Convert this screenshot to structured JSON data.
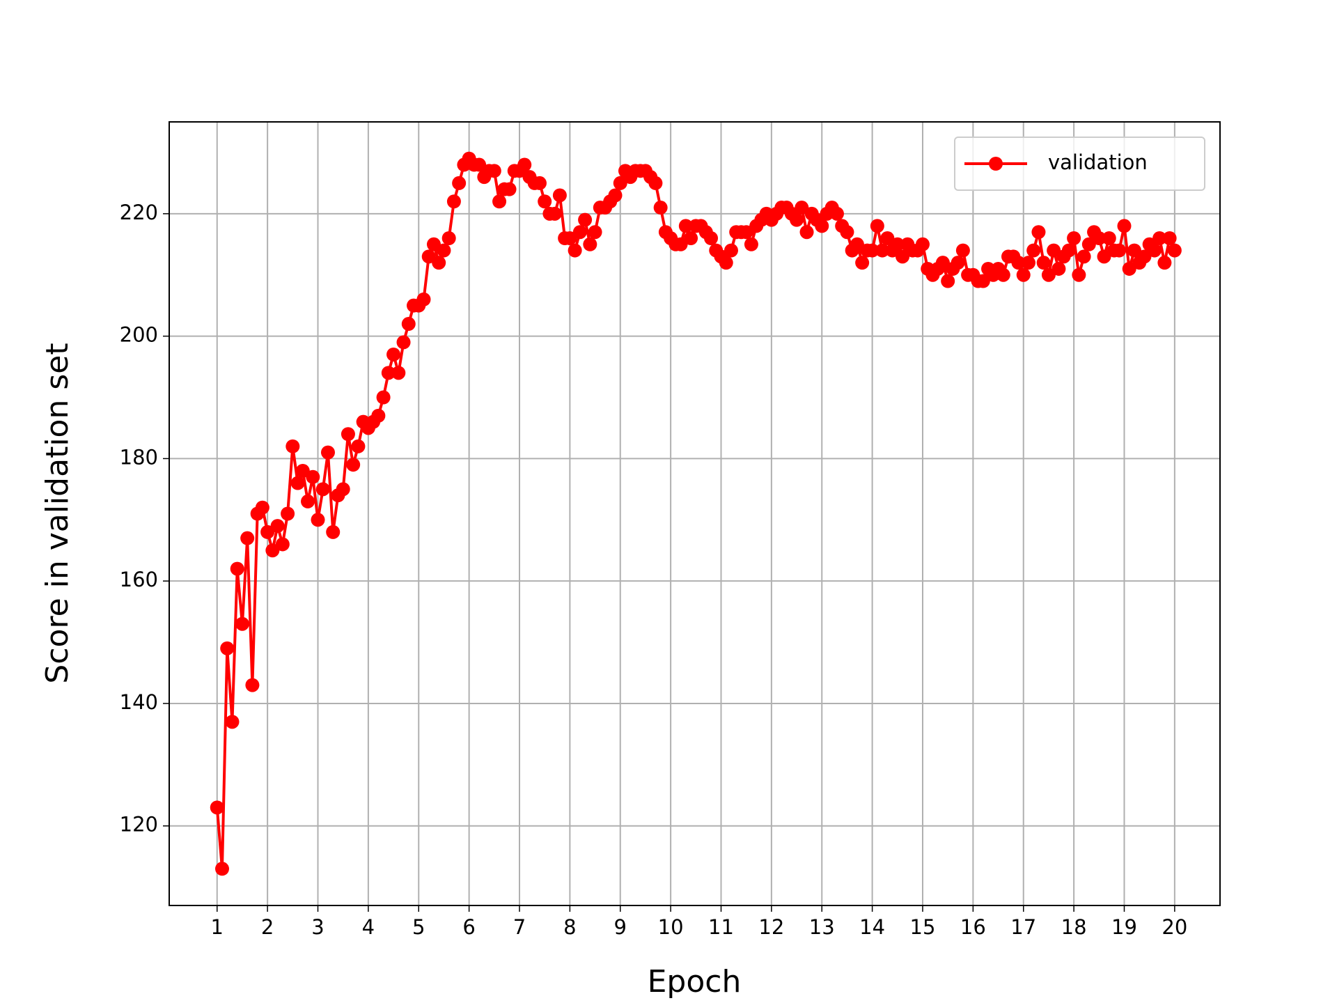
{
  "chart_data": {
    "type": "line",
    "xlabel": "Epoch",
    "ylabel": "Score in validation set",
    "x": [
      1.0,
      1.1,
      1.2,
      1.3,
      1.4,
      1.5,
      1.6,
      1.7,
      1.8,
      1.9,
      2.0,
      2.1,
      2.2,
      2.3,
      2.4,
      2.5,
      2.6,
      2.7,
      2.8,
      2.9,
      3.0,
      3.1,
      3.2,
      3.3,
      3.4,
      3.5,
      3.6,
      3.7,
      3.8,
      3.9,
      4.0,
      4.1,
      4.2,
      4.3,
      4.4,
      4.5,
      4.6,
      4.7,
      4.8,
      4.9,
      5.0,
      5.1,
      5.2,
      5.3,
      5.4,
      5.5,
      5.6,
      5.7,
      5.8,
      5.9,
      6.0,
      6.1,
      6.2,
      6.3,
      6.4,
      6.5,
      6.6,
      6.7,
      6.8,
      6.9,
      7.0,
      7.1,
      7.2,
      7.3,
      7.4,
      7.5,
      7.6,
      7.7,
      7.8,
      7.9,
      8.0,
      8.1,
      8.2,
      8.3,
      8.4,
      8.5,
      8.6,
      8.7,
      8.8,
      8.9,
      9.0,
      9.1,
      9.2,
      9.3,
      9.4,
      9.5,
      9.6,
      9.7,
      9.8,
      9.9,
      10.0,
      10.1,
      10.2,
      10.3,
      10.4,
      10.5,
      10.6,
      10.7,
      10.8,
      10.9,
      11.0,
      11.1,
      11.2,
      11.3,
      11.4,
      11.5,
      11.6,
      11.7,
      11.8,
      11.9,
      12.0,
      12.1,
      12.2,
      12.3,
      12.4,
      12.5,
      12.6,
      12.7,
      12.8,
      12.9,
      13.0,
      13.1,
      13.2,
      13.3,
      13.4,
      13.5,
      13.6,
      13.7,
      13.8,
      13.9,
      14.0,
      14.1,
      14.2,
      14.3,
      14.4,
      14.5,
      14.6,
      14.7,
      14.8,
      14.9,
      15.0,
      15.1,
      15.2,
      15.3,
      15.4,
      15.5,
      15.6,
      15.7,
      15.8,
      15.9,
      16.0,
      16.1,
      16.2,
      16.3,
      16.4,
      16.5,
      16.6,
      16.7,
      16.8,
      16.9,
      17.0,
      17.1,
      17.2,
      17.3,
      17.4,
      17.5,
      17.6,
      17.7,
      17.8,
      17.9,
      18.0,
      18.1,
      18.2,
      18.3,
      18.4,
      18.5,
      18.6,
      18.7,
      18.8,
      18.9,
      19.0,
      19.1,
      19.2,
      19.3,
      19.4,
      19.5,
      19.6,
      19.7,
      19.8,
      19.9,
      20.0
    ],
    "series": [
      {
        "name": "validation",
        "color": "#ff0000",
        "values": [
          123,
          113,
          149,
          137,
          162,
          153,
          167,
          143,
          171,
          172,
          168,
          165,
          169,
          166,
          171,
          182,
          176,
          178,
          173,
          177,
          170,
          175,
          181,
          168,
          174,
          175,
          184,
          179,
          182,
          186,
          185,
          186,
          187,
          190,
          194,
          197,
          194,
          199,
          202,
          205,
          205,
          206,
          213,
          215,
          212,
          214,
          216,
          222,
          225,
          228,
          229,
          228,
          228,
          226,
          227,
          227,
          222,
          224,
          224,
          227,
          227,
          228,
          226,
          225,
          225,
          222,
          220,
          220,
          223,
          216,
          216,
          214,
          217,
          219,
          215,
          217,
          221,
          221,
          222,
          223,
          225,
          227,
          226,
          227,
          227,
          227,
          226,
          225,
          221,
          217,
          216,
          215,
          215,
          218,
          216,
          218,
          218,
          217,
          216,
          214,
          213,
          212,
          214,
          217,
          217,
          217,
          215,
          218,
          219,
          220,
          219,
          220,
          221,
          221,
          220,
          219,
          221,
          217,
          220,
          219,
          218,
          220,
          221,
          220,
          218,
          217,
          214,
          215,
          212,
          214,
          214,
          218,
          214,
          216,
          214,
          215,
          213,
          215,
          214,
          214,
          215,
          211,
          210,
          211,
          212,
          209,
          211,
          212,
          214,
          210,
          210,
          209,
          209,
          211,
          210,
          211,
          210,
          213,
          213,
          212,
          210,
          212,
          214,
          217,
          212,
          210,
          214,
          211,
          213,
          214,
          216,
          210,
          213,
          215,
          217,
          216,
          213,
          216,
          214,
          214,
          218,
          211,
          214,
          212,
          213,
          215,
          214,
          216,
          212,
          216,
          214
        ]
      }
    ],
    "xlim": [
      0.05,
      20.9
    ],
    "ylim": [
      107,
      235
    ],
    "xticks": [
      1,
      2,
      3,
      4,
      5,
      6,
      7,
      8,
      9,
      10,
      11,
      12,
      13,
      14,
      15,
      16,
      17,
      18,
      19,
      20
    ],
    "yticks": [
      120,
      140,
      160,
      180,
      200,
      220
    ],
    "grid": true,
    "legend": "upper right"
  }
}
